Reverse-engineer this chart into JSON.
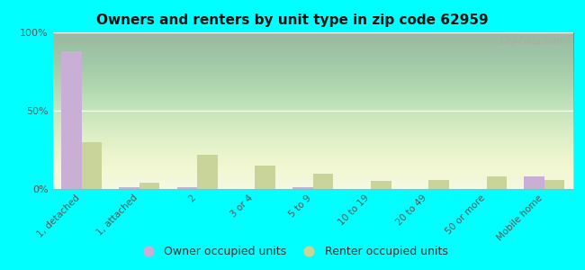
{
  "title": "Owners and renters by unit type in zip code 62959",
  "categories": [
    "1, detached",
    "1, attached",
    "2",
    "3 or 4",
    "5 to 9",
    "10 to 19",
    "20 to 49",
    "50 or more",
    "Mobile home"
  ],
  "owner_values": [
    88,
    1,
    1,
    0,
    1,
    0,
    0,
    0,
    8
  ],
  "renter_values": [
    30,
    4,
    22,
    15,
    10,
    5,
    6,
    8,
    6
  ],
  "owner_color": "#c9aed6",
  "renter_color": "#c8d49a",
  "background_color": "#00ffff",
  "ylim": [
    0,
    100
  ],
  "yticks": [
    0,
    50,
    100
  ],
  "ytick_labels": [
    "0%",
    "50%",
    "100%"
  ],
  "bar_width": 0.35,
  "legend_owner": "Owner occupied units",
  "legend_renter": "Renter occupied units",
  "watermark": "City-Data.com"
}
